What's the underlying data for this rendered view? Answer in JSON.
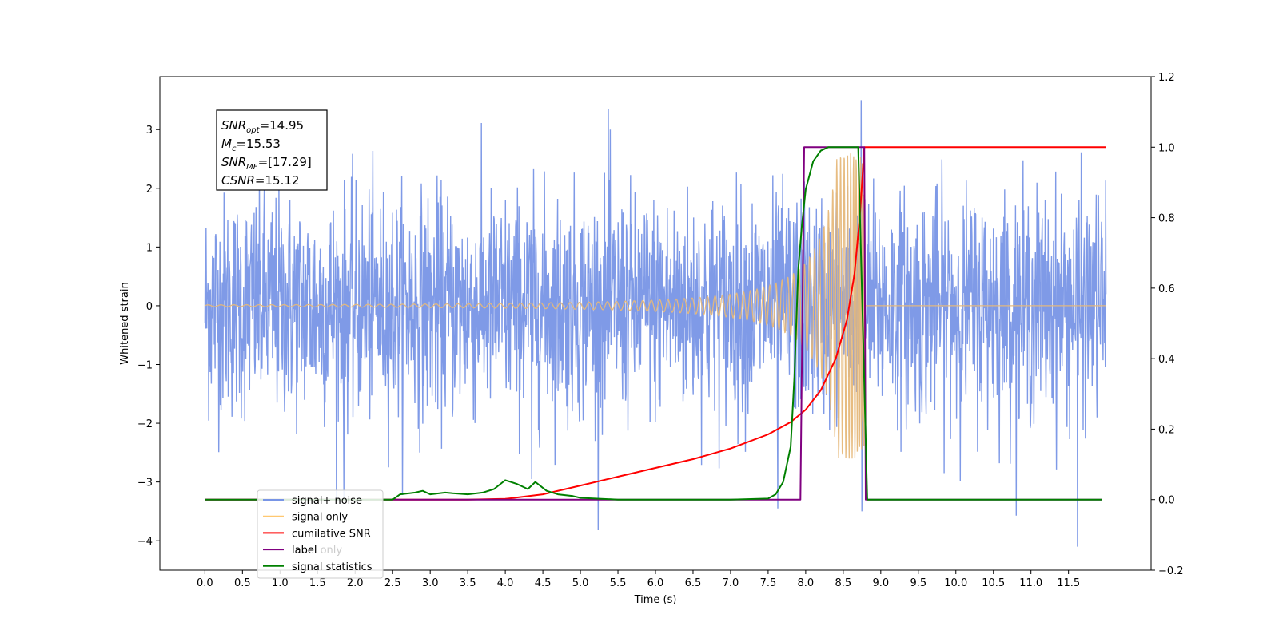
{
  "chart_data": {
    "type": "line",
    "title": "",
    "xlabel": "Time (s)",
    "ylabel": "Whitened strain",
    "y2label": "",
    "xlim": [
      -0.6,
      12.6
    ],
    "ylim": [
      -4.5,
      3.9
    ],
    "y2lim": [
      -0.2,
      1.2
    ],
    "x_ticks": [
      "0.0",
      "0.5",
      "1.0",
      "1.5",
      "2.0",
      "2.5",
      "3.0",
      "3.5",
      "4.0",
      "4.5",
      "5.0",
      "5.5",
      "6.0",
      "6.5",
      "7.0",
      "7.5",
      "8.0",
      "8.5",
      "9.0",
      "9.5",
      "10.0",
      "10.5",
      "11.0",
      "11.5"
    ],
    "y_ticks": [
      "−4",
      "−3",
      "−2",
      "−1",
      "0",
      "1",
      "2",
      "3"
    ],
    "y2_ticks": [
      "−0.2",
      "0.0",
      "0.2",
      "0.4",
      "0.6",
      "0.8",
      "1.0",
      "1.2"
    ],
    "grid": false,
    "legend_position": "lower-left",
    "annotation": [
      {
        "main": "SNR",
        "sub": "opt",
        "value": "=14.95"
      },
      {
        "main": "M",
        "sub": "c",
        "value": "=15.53"
      },
      {
        "main": "SNR",
        "sub": "MF",
        "value": "=[17.29]"
      },
      {
        "main": "CSNR",
        "sub": "",
        "value": "=15.12"
      }
    ],
    "series": [
      {
        "name": "signal+ noise",
        "axis": "left",
        "color": "#7895e6",
        "kind": "noise",
        "x_range": [
          0.0,
          12.0
        ],
        "noise_sigma": 0.95,
        "y_min": -4.1,
        "y_max": 3.5,
        "spikes": [
          {
            "x": 5.37,
            "y": 3.35
          },
          {
            "x": 8.74,
            "y": 3.52
          },
          {
            "x": 11.62,
            "y": -4.1
          },
          {
            "x": 7.63,
            "y": -3.45
          },
          {
            "x": 8.75,
            "y": -3.5
          },
          {
            "x": 1.85,
            "y": -3.25
          },
          {
            "x": 4.35,
            "y": -2.95
          }
        ]
      },
      {
        "name": "signal only",
        "axis": "left",
        "color": "#e6b87a",
        "kind": "chirp",
        "x_range": [
          0.0,
          12.0
        ],
        "merger_x": 8.78,
        "peak_amplitude": 2.6
      },
      {
        "name": "cumilative SNR",
        "axis": "right",
        "color": "#ff0000",
        "x": [
          0.0,
          3.5,
          4.0,
          4.5,
          5.0,
          5.5,
          6.0,
          6.5,
          7.0,
          7.5,
          7.8,
          8.0,
          8.2,
          8.4,
          8.55,
          8.65,
          8.72,
          8.76,
          8.78,
          12.0
        ],
        "y": [
          0.0,
          0.0,
          0.002,
          0.015,
          0.04,
          0.065,
          0.09,
          0.115,
          0.145,
          0.185,
          0.22,
          0.255,
          0.31,
          0.4,
          0.51,
          0.64,
          0.8,
          0.93,
          1.0,
          1.0
        ]
      },
      {
        "name": "label",
        "axis": "right",
        "color": "#800080",
        "x": [
          0.0,
          7.93,
          7.98,
          8.78,
          8.8,
          11.95
        ],
        "y": [
          0.0,
          0.0,
          1.0,
          1.0,
          0.0,
          0.0
        ]
      },
      {
        "name": "label only",
        "axis": "right",
        "color": "#cccccc",
        "hidden_line": true,
        "x": [],
        "y": []
      },
      {
        "name": "signal statistics",
        "axis": "right",
        "color": "#008000",
        "x": [
          0.0,
          2.5,
          2.6,
          2.8,
          2.9,
          3.0,
          3.2,
          3.3,
          3.5,
          3.7,
          3.85,
          4.0,
          4.15,
          4.3,
          4.4,
          4.55,
          4.7,
          4.9,
          5.0,
          5.5,
          7.0,
          7.5,
          7.6,
          7.7,
          7.8,
          7.85,
          7.9,
          7.95,
          8.0,
          8.1,
          8.2,
          8.3,
          8.5,
          8.7,
          8.76,
          8.82,
          11.95
        ],
        "y": [
          0.0,
          0.0,
          0.015,
          0.02,
          0.025,
          0.015,
          0.02,
          0.018,
          0.015,
          0.02,
          0.03,
          0.055,
          0.045,
          0.03,
          0.05,
          0.025,
          0.015,
          0.01,
          0.005,
          0.0,
          0.0,
          0.003,
          0.015,
          0.05,
          0.15,
          0.35,
          0.65,
          0.78,
          0.88,
          0.96,
          0.99,
          1.0,
          1.0,
          1.0,
          0.5,
          0.0,
          0.0
        ]
      }
    ],
    "legend_line_colors": [
      "#7895e6",
      "#ffc870",
      "#ff0000",
      "#800080",
      "#008000"
    ],
    "legend": [
      "signal+ noise",
      "signal only",
      "cumilative SNR",
      "label",
      "signal statistics"
    ],
    "legend_overlap_text": "label only"
  }
}
